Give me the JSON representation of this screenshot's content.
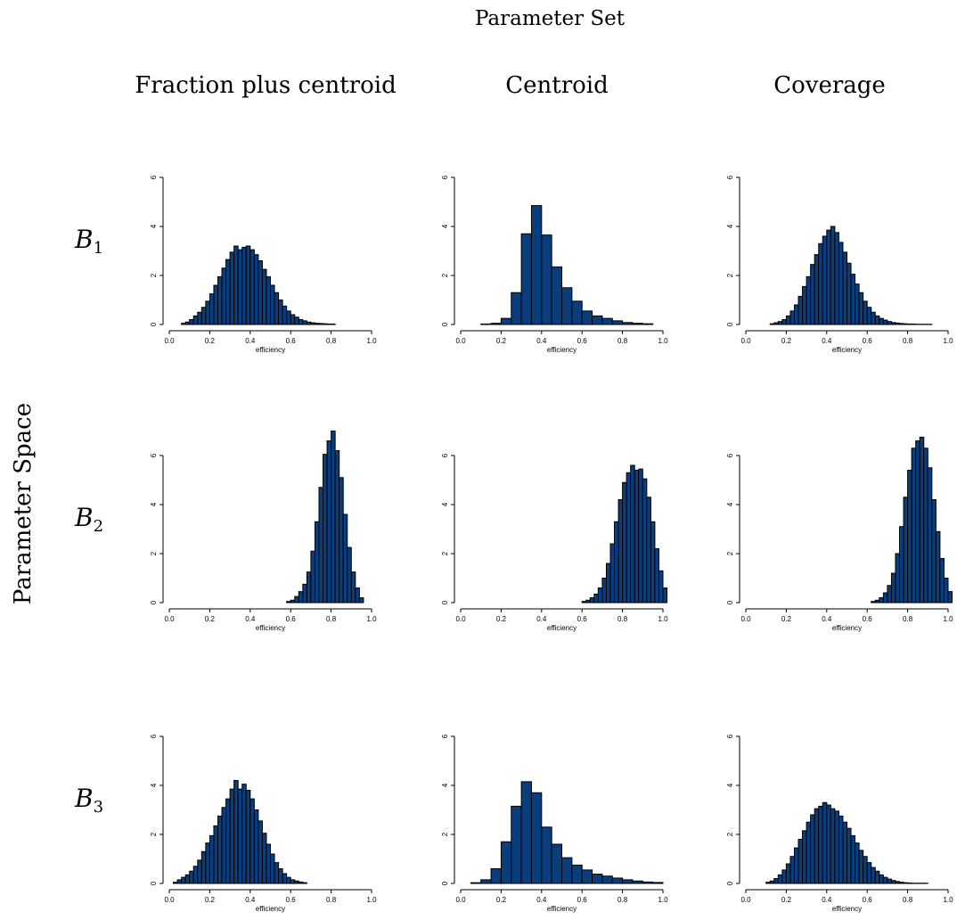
{
  "header": {
    "title": "Parameter Set",
    "columns": [
      "Fraction plus centroid",
      "Centroid",
      "Coverage"
    ],
    "row_axis_label": "Parameter Space",
    "rows": [
      {
        "symbol": "B",
        "subscript": "1"
      },
      {
        "symbol": "B",
        "subscript": "2"
      },
      {
        "symbol": "B",
        "subscript": "3"
      }
    ]
  },
  "colors": {
    "bar_fill": "#0a3d7c",
    "bar_edge": "#000000",
    "axis": "#000000"
  },
  "chart_data": [
    {
      "type": "bar",
      "row": 0,
      "col": 0,
      "xlabel": "efficiency",
      "xlim": [
        0,
        1
      ],
      "ylim": [
        0,
        6
      ],
      "x_ticks": [
        "0.0",
        "0.2",
        "0.4",
        "0.6",
        "0.8",
        "1.0"
      ],
      "y_ticks": [
        "0",
        "2",
        "4",
        "6"
      ],
      "bin_start": 0.06,
      "bin_width": 0.02,
      "values": [
        0.05,
        0.1,
        0.2,
        0.35,
        0.5,
        0.7,
        0.95,
        1.25,
        1.6,
        1.95,
        2.3,
        2.65,
        2.95,
        3.2,
        3.05,
        3.15,
        3.2,
        3.05,
        2.85,
        2.6,
        2.25,
        1.95,
        1.6,
        1.3,
        1.0,
        0.75,
        0.55,
        0.4,
        0.3,
        0.2,
        0.15,
        0.1,
        0.07,
        0.05,
        0.04,
        0.03,
        0.02,
        0.02
      ]
    },
    {
      "type": "bar",
      "row": 0,
      "col": 1,
      "xlabel": "efficiency",
      "xlim": [
        0,
        1
      ],
      "ylim": [
        0,
        6
      ],
      "x_ticks": [
        "0.0",
        "0.2",
        "0.4",
        "0.6",
        "0.8",
        "1.0"
      ],
      "y_ticks": [
        "0",
        "2",
        "4",
        "6"
      ],
      "bin_start": 0.1,
      "bin_width": 0.05,
      "values": [
        0.02,
        0.05,
        0.25,
        1.3,
        3.7,
        4.85,
        3.65,
        2.35,
        1.5,
        0.95,
        0.55,
        0.35,
        0.25,
        0.15,
        0.08,
        0.05,
        0.03
      ]
    },
    {
      "type": "bar",
      "row": 0,
      "col": 2,
      "xlabel": "efficiency",
      "xlim": [
        0,
        1
      ],
      "ylim": [
        0,
        6
      ],
      "x_ticks": [
        "0.0",
        "0.2",
        "0.4",
        "0.6",
        "0.8",
        "1.0"
      ],
      "y_ticks": [
        "0",
        "2",
        "4",
        "6"
      ],
      "bin_start": 0.12,
      "bin_width": 0.02,
      "values": [
        0.03,
        0.07,
        0.12,
        0.2,
        0.35,
        0.55,
        0.8,
        1.15,
        1.55,
        1.95,
        2.45,
        2.85,
        3.3,
        3.6,
        3.85,
        4.0,
        3.75,
        3.35,
        2.95,
        2.5,
        2.05,
        1.65,
        1.3,
        0.95,
        0.7,
        0.5,
        0.35,
        0.25,
        0.18,
        0.12,
        0.08,
        0.06,
        0.04,
        0.03,
        0.02,
        0.02,
        0.01,
        0.01,
        0.01,
        0.01
      ]
    },
    {
      "type": "bar",
      "row": 1,
      "col": 0,
      "xlabel": "efficiency",
      "xlim": [
        0,
        1
      ],
      "ylim": [
        0,
        6
      ],
      "x_ticks": [
        "0.0",
        "0.2",
        "0.4",
        "0.6",
        "0.8",
        "1.0"
      ],
      "y_ticks": [
        "0",
        "2",
        "4",
        "6"
      ],
      "bin_start": 0.58,
      "bin_width": 0.02,
      "values": [
        0.05,
        0.1,
        0.25,
        0.45,
        0.75,
        1.25,
        2.1,
        3.3,
        4.7,
        6.05,
        6.6,
        7.0,
        6.2,
        5.1,
        3.6,
        2.25,
        1.25,
        0.6,
        0.2
      ]
    },
    {
      "type": "bar",
      "row": 1,
      "col": 1,
      "xlabel": "efficiency",
      "xlim": [
        0,
        1
      ],
      "ylim": [
        0,
        6
      ],
      "x_ticks": [
        "0.0",
        "0.2",
        "0.4",
        "0.6",
        "0.8",
        "1.0"
      ],
      "y_ticks": [
        "0",
        "2",
        "4",
        "6"
      ],
      "bin_start": 0.6,
      "bin_width": 0.02,
      "values": [
        0.05,
        0.1,
        0.2,
        0.35,
        0.6,
        1.0,
        1.6,
        2.4,
        3.3,
        4.2,
        4.9,
        5.3,
        5.6,
        5.4,
        5.45,
        5.05,
        4.3,
        3.3,
        2.2,
        1.3,
        0.6
      ]
    },
    {
      "type": "bar",
      "row": 1,
      "col": 2,
      "xlabel": "efficiency",
      "xlim": [
        0,
        1
      ],
      "ylim": [
        0,
        6
      ],
      "x_ticks": [
        "0.0",
        "0.2",
        "0.4",
        "0.6",
        "0.8",
        "1.0"
      ],
      "y_ticks": [
        "0",
        "2",
        "4",
        "6"
      ],
      "bin_start": 0.62,
      "bin_width": 0.02,
      "values": [
        0.05,
        0.1,
        0.2,
        0.4,
        0.7,
        1.2,
        2.0,
        3.1,
        4.3,
        5.4,
        6.3,
        6.6,
        6.75,
        6.3,
        5.5,
        4.2,
        2.9,
        1.8,
        1.0,
        0.45
      ]
    },
    {
      "type": "bar",
      "row": 2,
      "col": 0,
      "xlabel": "efficiency",
      "xlim": [
        0,
        1
      ],
      "ylim": [
        0,
        6
      ],
      "x_ticks": [
        "0.0",
        "0.2",
        "0.4",
        "0.6",
        "0.8",
        "1.0"
      ],
      "y_ticks": [
        "0",
        "2",
        "4",
        "6"
      ],
      "bin_start": 0.02,
      "bin_width": 0.02,
      "values": [
        0.05,
        0.15,
        0.25,
        0.35,
        0.5,
        0.7,
        0.95,
        1.3,
        1.65,
        1.95,
        2.35,
        2.75,
        3.1,
        3.45,
        3.85,
        4.2,
        3.85,
        4.05,
        3.8,
        3.45,
        3.0,
        2.55,
        2.05,
        1.6,
        1.2,
        0.85,
        0.6,
        0.4,
        0.25,
        0.15,
        0.1,
        0.06,
        0.03
      ]
    },
    {
      "type": "bar",
      "row": 2,
      "col": 1,
      "xlabel": "efficiency",
      "xlim": [
        0,
        1
      ],
      "ylim": [
        0,
        6
      ],
      "x_ticks": [
        "0.0",
        "0.2",
        "0.4",
        "0.6",
        "0.8",
        "1.0"
      ],
      "y_ticks": [
        "0",
        "2",
        "4",
        "6"
      ],
      "bin_start": 0.05,
      "bin_width": 0.05,
      "values": [
        0.03,
        0.15,
        0.6,
        1.7,
        3.15,
        4.15,
        3.7,
        2.3,
        1.6,
        1.05,
        0.75,
        0.55,
        0.38,
        0.3,
        0.22,
        0.15,
        0.1,
        0.06,
        0.04
      ]
    },
    {
      "type": "bar",
      "row": 2,
      "col": 2,
      "xlabel": "efficiency",
      "xlim": [
        0,
        1
      ],
      "ylim": [
        0,
        6
      ],
      "x_ticks": [
        "0.0",
        "0.2",
        "0.4",
        "0.6",
        "0.8",
        "1.0"
      ],
      "y_ticks": [
        "0",
        "2",
        "4",
        "6"
      ],
      "bin_start": 0.1,
      "bin_width": 0.02,
      "values": [
        0.05,
        0.1,
        0.2,
        0.35,
        0.55,
        0.8,
        1.1,
        1.45,
        1.8,
        2.15,
        2.5,
        2.8,
        3.05,
        3.15,
        3.3,
        3.2,
        3.05,
        2.95,
        2.75,
        2.5,
        2.25,
        1.95,
        1.65,
        1.35,
        1.1,
        0.85,
        0.65,
        0.5,
        0.35,
        0.25,
        0.18,
        0.12,
        0.08,
        0.05,
        0.03,
        0.02,
        0.01,
        0.01,
        0.01,
        0.01
      ]
    }
  ]
}
